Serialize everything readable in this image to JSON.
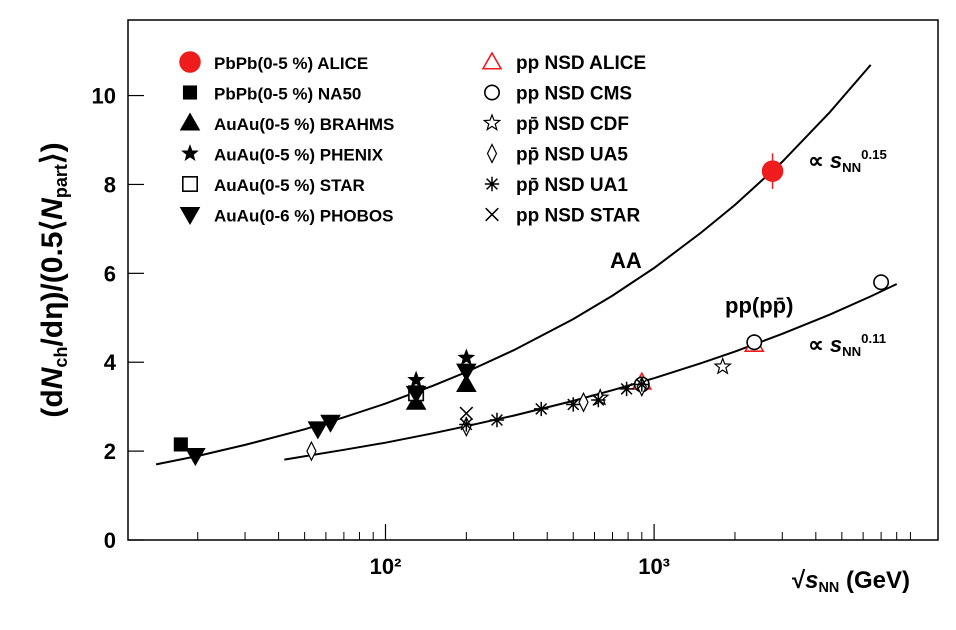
{
  "chart_data": {
    "type": "scatter",
    "x_label_parts": [
      {
        "text": "√"
      },
      {
        "text": "s",
        "style": "italic"
      },
      {
        "text": "NN",
        "style": "sub"
      },
      {
        "text": "  (GeV)"
      }
    ],
    "y_label_parts": [
      {
        "text": "(d"
      },
      {
        "text": "N",
        "style": "italic"
      },
      {
        "text": "ch",
        "style": "sub"
      },
      {
        "text": "/dη)/(0.5⟨"
      },
      {
        "text": "N",
        "style": "italic"
      },
      {
        "text": "part",
        "style": "sub"
      },
      {
        "text": "⟩)"
      }
    ],
    "xscale": "log",
    "xlim": [
      11,
      11400
    ],
    "ylim": [
      0,
      11.7
    ],
    "xticks": [
      {
        "value": 100,
        "label": "10²"
      },
      {
        "value": 1000,
        "label": "10³"
      }
    ],
    "xminorticks": [
      20,
      30,
      40,
      50,
      60,
      70,
      80,
      90,
      200,
      300,
      400,
      500,
      600,
      700,
      800,
      900,
      2000,
      3000,
      4000,
      5000,
      6000,
      7000,
      8000,
      9000
    ],
    "yticks": [
      0,
      2,
      4,
      6,
      8,
      10
    ],
    "series": [
      {
        "name": "PbPb(0-5 %) ALICE",
        "color": "#ee1c1c",
        "marker": "circle",
        "x": [
          2760
        ],
        "values": [
          8.3
        ],
        "errors": [
          0.4
        ]
      },
      {
        "name": "PbPb(0-5 %) NA50",
        "color": "#000000",
        "marker": "square",
        "x": [
          17.3
        ],
        "values": [
          2.15
        ]
      },
      {
        "name": "AuAu(0-5 %) BRAHMS",
        "color": "#000000",
        "marker": "triangle-up",
        "x": [
          130,
          200
        ],
        "values": [
          3.1,
          3.5
        ]
      },
      {
        "name": "AuAu(0-5 %) PHENIX",
        "color": "#000000",
        "marker": "star",
        "x": [
          130,
          200
        ],
        "values": [
          3.6,
          4.1
        ]
      },
      {
        "name": "AuAu(0-5 %) STAR",
        "color": "#000000",
        "marker": "open-square",
        "x": [
          130
        ],
        "values": [
          3.3
        ]
      },
      {
        "name": "AuAu(0-6 %) PHOBOS",
        "color": "#000000",
        "marker": "triangle-down",
        "x": [
          19.6,
          56,
          62.4,
          130,
          200
        ],
        "values": [
          1.9,
          2.5,
          2.65,
          3.3,
          3.8
        ]
      },
      {
        "name": "pp NSD  ALICE",
        "color": "#ee1c1c",
        "marker": "open-triangle",
        "x": [
          900,
          2360
        ],
        "values": [
          3.55,
          4.4
        ]
      },
      {
        "name": "pp NSD CMS",
        "color": "#000000",
        "marker": "open-circle",
        "x": [
          900,
          2360,
          7000
        ],
        "values": [
          3.5,
          4.45,
          5.8
        ]
      },
      {
        "name": "pp̄ NSD CDF",
        "color": "#000000",
        "marker": "open-star",
        "x": [
          630,
          1800
        ],
        "values": [
          3.2,
          3.9
        ]
      },
      {
        "name": "pp̄ NSD UA5",
        "color": "#000000",
        "marker": "open-diamond",
        "x": [
          53,
          200,
          546,
          900
        ],
        "values": [
          2.0,
          2.55,
          3.1,
          3.45
        ]
      },
      {
        "name": "pp̄ NSD UA1",
        "color": "#000000",
        "marker": "asterisk",
        "x": [
          200,
          260,
          380,
          500,
          620,
          790,
          900
        ],
        "values": [
          2.6,
          2.7,
          2.95,
          3.05,
          3.15,
          3.4,
          3.5
        ]
      },
      {
        "name": "pp NSD STAR",
        "color": "#000000",
        "marker": "cross",
        "x": [
          200
        ],
        "values": [
          2.85
        ]
      }
    ],
    "fits": [
      {
        "x": [
          14,
          20,
          30,
          50,
          70,
          100,
          150,
          200,
          300,
          500,
          700,
          1000,
          1500,
          2000,
          3000,
          4500,
          6400
        ],
        "values": [
          1.7,
          1.89,
          2.14,
          2.49,
          2.76,
          3.07,
          3.47,
          3.78,
          4.27,
          4.97,
          5.5,
          6.12,
          6.92,
          7.54,
          8.51,
          9.62,
          10.69
        ]
      },
      {
        "x": [
          42,
          70,
          100,
          150,
          200,
          300,
          500,
          700,
          1000,
          1500,
          2000,
          3000,
          4500,
          6400,
          8000
        ],
        "values": [
          1.81,
          2.03,
          2.19,
          2.4,
          2.56,
          2.8,
          3.13,
          3.37,
          3.64,
          3.98,
          4.24,
          4.64,
          5.07,
          5.48,
          5.76
        ]
      }
    ],
    "annotations": [
      {
        "parts": [
          {
            "text": "AA"
          }
        ]
      },
      {
        "parts": [
          {
            "text": "pp(pp̄)"
          }
        ]
      },
      {
        "parts": [
          {
            "text": "∝ "
          },
          {
            "text": "s",
            "style": "italic"
          },
          {
            "text": "NN",
            "style": "sub"
          },
          {
            "text": "0.15",
            "style": "sup"
          }
        ]
      },
      {
        "parts": [
          {
            "text": "∝ "
          },
          {
            "text": "s",
            "style": "italic"
          },
          {
            "text": "NN",
            "style": "sub"
          },
          {
            "text": "0.11",
            "style": "sup"
          }
        ]
      }
    ]
  }
}
